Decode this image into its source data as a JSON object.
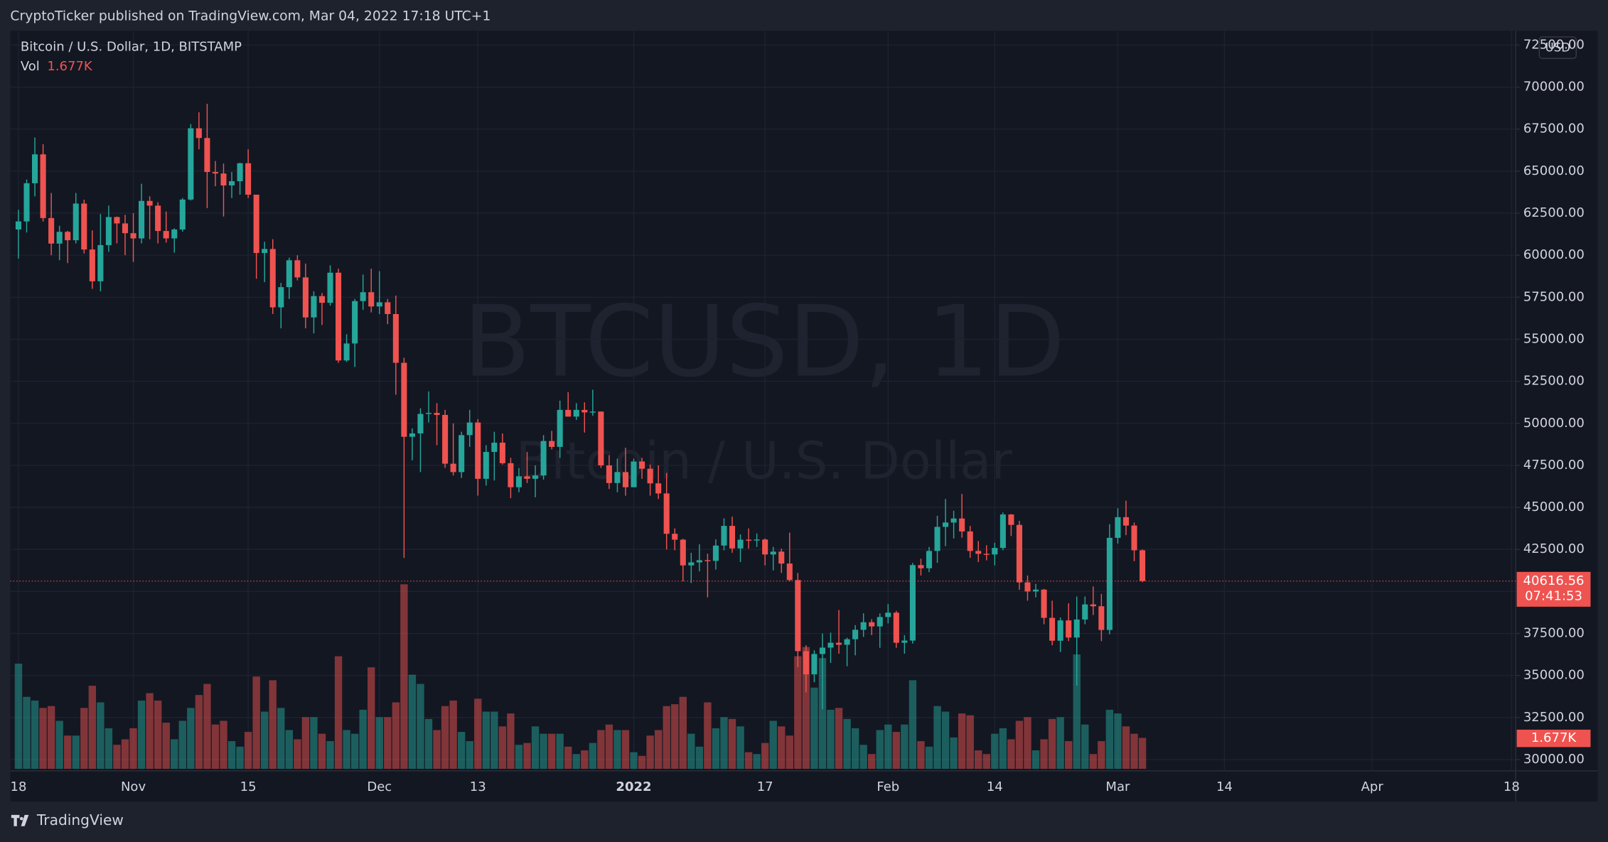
{
  "header": {
    "publisher": "CryptoTicker published on TradingView.com, Mar 04, 2022 17:18 UTC+1"
  },
  "footer": {
    "brand": "TradingView"
  },
  "chart_data": {
    "type": "candlestick",
    "title": "Bitcoin / U.S. Dollar, 1D, BITSTAMP",
    "watermark": "BTCUSD, 1D",
    "watermark_subtitle": "Bitcoin / U.S. Dollar",
    "currency": "USD",
    "countdown": "07:41:53",
    "up_color": "#26a69a",
    "down_color": "#ef5350",
    "grid": true,
    "ylim": [
      29330,
      73350
    ],
    "yticks": [
      {
        "value": 30000,
        "label": "30000.00"
      },
      {
        "value": 32500,
        "label": "32500.00"
      },
      {
        "value": 35000,
        "label": "35000.00"
      },
      {
        "value": 37500,
        "label": "37500.00"
      },
      {
        "value": 40000,
        "label": "40000.00"
      },
      {
        "value": 42500,
        "label": "42500.00"
      },
      {
        "value": 45000,
        "label": "45000.00"
      },
      {
        "value": 47500,
        "label": "47500.00"
      },
      {
        "value": 50000,
        "label": "50000.00"
      },
      {
        "value": 52500,
        "label": "52500.00"
      },
      {
        "value": 55000,
        "label": "55000.00"
      },
      {
        "value": 57500,
        "label": "57500.00"
      },
      {
        "value": 60000,
        "label": "60000.00"
      },
      {
        "value": 62500,
        "label": "62500.00"
      },
      {
        "value": 65000,
        "label": "65000.00"
      },
      {
        "value": 67500,
        "label": "67500.00"
      },
      {
        "value": 70000,
        "label": "70000.00"
      },
      {
        "value": 72500,
        "label": "72500.00"
      }
    ],
    "categories": [
      "18",
      null,
      null,
      null,
      null,
      null,
      null,
      null,
      null,
      null,
      null,
      null,
      null,
      null,
      "Nov",
      null,
      null,
      null,
      null,
      null,
      null,
      null,
      null,
      null,
      null,
      null,
      null,
      null,
      "15",
      null,
      null,
      null,
      null,
      null,
      null,
      null,
      null,
      null,
      null,
      null,
      null,
      null,
      null,
      null,
      "Dec",
      null,
      null,
      null,
      null,
      null,
      null,
      null,
      null,
      null,
      null,
      null,
      "13",
      null,
      null,
      null,
      null,
      null,
      null,
      null,
      null,
      null,
      null,
      null,
      null,
      null,
      null,
      null,
      null,
      null,
      null,
      "2022",
      null,
      null,
      null,
      null,
      null,
      null,
      null,
      null,
      null,
      null,
      null,
      null,
      null,
      null,
      null,
      "17",
      null,
      null,
      null,
      null,
      null,
      null,
      null,
      null,
      null,
      null,
      null,
      null,
      null,
      null,
      "Feb",
      null,
      null,
      null,
      null,
      null,
      null,
      null,
      null,
      null,
      null,
      null,
      null,
      "14",
      null,
      null,
      null,
      null,
      null,
      null,
      null,
      null,
      null,
      null,
      null,
      null,
      null,
      null,
      "Mar",
      null,
      null,
      null,
      null,
      null,
      null,
      null,
      null,
      null,
      null,
      null,
      null,
      "14",
      null,
      null,
      null,
      null,
      null,
      null,
      null,
      null,
      null,
      null,
      null,
      null,
      null,
      null,
      null,
      null,
      null,
      "Apr",
      null,
      null,
      null,
      null,
      null,
      null,
      null,
      null,
      null,
      null,
      null,
      null,
      null,
      null,
      null,
      null,
      "18"
    ],
    "open": [
      61530,
      62010,
      64280,
      66000,
      62210,
      60690,
      61390,
      60890,
      63070,
      60340,
      58450,
      60600,
      62270,
      61890,
      61310,
      61000,
      63230,
      62950,
      61440,
      61000,
      61530,
      63310,
      67550,
      66970,
      64950,
      64860,
      64150,
      64400,
      65470,
      63600,
      60130,
      60370,
      56900,
      58100,
      59700,
      58680,
      56300,
      57570,
      57170,
      58960,
      53740,
      54750,
      57270,
      57800,
      56950,
      57200,
      56500,
      53600,
      49200,
      49400,
      50560,
      50620,
      50500,
      47600,
      47100,
      49300,
      50050,
      46700,
      48300,
      48850,
      47630,
      46200,
      46850,
      46700,
      46900,
      48950,
      48600,
      50800,
      50400,
      50800,
      50650,
      50700,
      47500,
      46450,
      47100,
      46200,
      47730,
      47300,
      46430,
      45830,
      43430,
      43080,
      41550,
      41730,
      41860,
      41820,
      42730,
      43900,
      42560,
      43080,
      43070,
      43090,
      42200,
      42370,
      41660,
      40680,
      36450,
      35070,
      36280,
      36660,
      36950,
      36830,
      37160,
      37720,
      38170,
      37920,
      38480,
      38740,
      36950,
      37080,
      41570,
      41380,
      42410,
      43840,
      44100,
      44340,
      43570,
      42410,
      42240,
      42200,
      42590,
      44580,
      43960,
      40540,
      40000,
      40110,
      38430,
      37070,
      38280,
      37260,
      38330,
      39230,
      39120,
      37710,
      43190,
      44420,
      43920,
      42450,
      null,
      null,
      null,
      null,
      null,
      null,
      null,
      null,
      null,
      null,
      null,
      null,
      null,
      null,
      null,
      null,
      null,
      null,
      null,
      null,
      null,
      null,
      null,
      null,
      null,
      null,
      null,
      null,
      null,
      null,
      null,
      null,
      null,
      null,
      null,
      null,
      null,
      null,
      null,
      null,
      null,
      null,
      null,
      null,
      null
    ],
    "high": [
      62700,
      64500,
      67000,
      66600,
      63700,
      61750,
      61450,
      63700,
      63300,
      61470,
      62450,
      62950,
      62300,
      62400,
      62500,
      64250,
      63500,
      63150,
      62600,
      61600,
      63400,
      67800,
      68500,
      69000,
      65600,
      65450,
      64950,
      65500,
      66300,
      63600,
      60800,
      60950,
      58350,
      59850,
      60000,
      59500,
      57850,
      57750,
      59400,
      59200,
      55300,
      57400,
      58850,
      59200,
      59050,
      57400,
      57600,
      53900,
      49700,
      50900,
      51900,
      51200,
      50800,
      50000,
      49500,
      50800,
      50250,
      48700,
      49500,
      49400,
      47950,
      47350,
      48300,
      47500,
      49300,
      49550,
      51350,
      51850,
      51200,
      51250,
      52000,
      50700,
      48100,
      47900,
      48550,
      47900,
      47950,
      47550,
      47500,
      47050,
      43750,
      43130,
      42300,
      42800,
      42250,
      43100,
      44350,
      44450,
      43400,
      43750,
      43450,
      43150,
      42650,
      42550,
      43500,
      41100,
      36800,
      36500,
      37500,
      37550,
      38900,
      37250,
      38000,
      38700,
      38350,
      38700,
      39250,
      38850,
      37400,
      41700,
      41950,
      42650,
      44500,
      45500,
      44800,
      45800,
      43900,
      43000,
      42750,
      42900,
      44700,
      44600,
      44200,
      40950,
      40450,
      40150,
      39450,
      38450,
      39300,
      39700,
      39700,
      40300,
      39850,
      44000,
      44950,
      45400,
      44100,
      42500,
      null,
      null,
      null,
      null,
      null,
      null,
      null,
      null,
      null,
      null,
      null,
      null,
      null,
      null,
      null,
      null,
      null,
      null,
      null,
      null,
      null,
      null,
      null,
      null,
      null,
      null,
      null,
      null,
      null,
      null,
      null,
      null,
      null,
      null,
      null,
      null,
      null,
      null,
      null,
      null,
      null,
      null,
      null,
      null,
      null
    ],
    "low": [
      59800,
      61350,
      63500,
      62000,
      60000,
      59700,
      59530,
      60700,
      60100,
      58000,
      57850,
      60200,
      60700,
      60000,
      59600,
      60700,
      60950,
      60700,
      60750,
      60150,
      61400,
      63250,
      66300,
      62800,
      64100,
      62300,
      63400,
      63600,
      63400,
      58600,
      58400,
      56500,
      55650,
      57400,
      58500,
      55650,
      55350,
      55850,
      57000,
      53600,
      53650,
      53350,
      56750,
      56600,
      56500,
      55900,
      51700,
      42000,
      47800,
      47100,
      50050,
      48700,
      47350,
      46900,
      46750,
      48600,
      45700,
      46300,
      46600,
      47550,
      45550,
      45900,
      46450,
      45600,
      46650,
      48450,
      47950,
      50400,
      50200,
      49450,
      50450,
      47350,
      46100,
      45900,
      45700,
      46200,
      46700,
      45700,
      45500,
      42500,
      42450,
      40600,
      40500,
      41200,
      39650,
      41300,
      42450,
      42300,
      41750,
      42550,
      42650,
      41550,
      41250,
      41100,
      40600,
      35500,
      34000,
      34600,
      33000,
      35750,
      36300,
      35550,
      36200,
      37300,
      37400,
      36650,
      38100,
      36650,
      36300,
      36900,
      40950,
      41150,
      41700,
      42700,
      43150,
      43200,
      42000,
      41750,
      41850,
      41550,
      42450,
      43300,
      40100,
      39450,
      39650,
      38050,
      36800,
      36400,
      37050,
      34400,
      38050,
      38600,
      37050,
      37450,
      42850,
      43350,
      41800,
      40550,
      null,
      null,
      null,
      null,
      null,
      null,
      null,
      null,
      null,
      null,
      null,
      null,
      null,
      null,
      null,
      null,
      null,
      null,
      null,
      null,
      null,
      null,
      null,
      null,
      null,
      null,
      null,
      null,
      null,
      null,
      null,
      null,
      null,
      null,
      null,
      null,
      null,
      null,
      null,
      null,
      null,
      null,
      null,
      null,
      null
    ],
    "close": [
      62010,
      64280,
      66000,
      62210,
      60690,
      61390,
      60890,
      63070,
      60340,
      58450,
      60600,
      62270,
      61890,
      61310,
      61000,
      63230,
      62950,
      61440,
      61000,
      61530,
      63310,
      67550,
      66970,
      64950,
      64860,
      64150,
      64400,
      65470,
      63600,
      60130,
      60370,
      56900,
      58100,
      59700,
      58680,
      56300,
      57570,
      57170,
      58960,
      53740,
      54750,
      57270,
      57800,
      56950,
      57200,
      56500,
      53600,
      49200,
      49400,
      50560,
      50620,
      50500,
      47600,
      47100,
      49300,
      50050,
      46700,
      48300,
      48850,
      47630,
      46200,
      46850,
      46700,
      46900,
      48950,
      48600,
      50800,
      50400,
      50800,
      50650,
      50700,
      47500,
      46450,
      47100,
      46200,
      47730,
      47300,
      46430,
      45830,
      43430,
      43080,
      41550,
      41730,
      41860,
      41820,
      42730,
      43900,
      42560,
      43080,
      43070,
      43090,
      42200,
      42370,
      41660,
      40680,
      36450,
      35070,
      36280,
      36660,
      36950,
      36830,
      37160,
      37720,
      38170,
      37920,
      38480,
      38740,
      36950,
      37080,
      41570,
      41380,
      42410,
      43840,
      44100,
      44340,
      43570,
      42410,
      42240,
      42200,
      42590,
      44580,
      43960,
      40540,
      40000,
      40110,
      38430,
      37070,
      38280,
      37260,
      38330,
      39230,
      39120,
      37710,
      43190,
      44420,
      43920,
      42450,
      40616.56,
      null,
      null,
      null,
      null,
      null,
      null,
      null,
      null,
      null,
      null,
      null,
      null,
      null,
      null,
      null,
      null,
      null,
      null,
      null,
      null,
      null,
      null,
      null,
      null,
      null,
      null,
      null,
      null,
      null,
      null,
      null,
      null,
      null,
      null,
      null,
      null,
      null,
      null,
      null,
      null,
      null,
      null,
      null,
      null,
      null
    ],
    "volume": {
      "name": "Vol",
      "last_label": "1.677K",
      "values": [
        5700,
        3900,
        3700,
        3300,
        3400,
        2600,
        1800,
        1800,
        3300,
        4500,
        3600,
        2200,
        1300,
        1600,
        2200,
        3700,
        4100,
        3700,
        2500,
        1600,
        2600,
        3300,
        4000,
        4600,
        2400,
        2600,
        1500,
        1200,
        2000,
        5000,
        3100,
        4800,
        3300,
        2100,
        1600,
        2800,
        2800,
        1900,
        1500,
        6100,
        2100,
        1900,
        3200,
        5500,
        2800,
        2800,
        3600,
        10000,
        5100,
        4600,
        2700,
        2100,
        3400,
        3700,
        2000,
        1500,
        3800,
        3100,
        3100,
        2300,
        3000,
        1300,
        1400,
        2300,
        1900,
        1900,
        1900,
        1200,
        800,
        1000,
        1400,
        2100,
        2400,
        2100,
        2100,
        900,
        700,
        1800,
        2100,
        3400,
        3500,
        3900,
        1900,
        1200,
        3600,
        2200,
        2800,
        2700,
        2300,
        900,
        800,
        1400,
        2600,
        2300,
        1800,
        6100,
        6600,
        4400,
        6000,
        3200,
        3300,
        2700,
        2200,
        1300,
        800,
        2100,
        2400,
        2000,
        2400,
        4800,
        1500,
        1200,
        3400,
        3100,
        1700,
        3000,
        2900,
        1000,
        800,
        1900,
        2200,
        1600,
        2600,
        2800,
        1000,
        1600,
        2700,
        2800,
        1500,
        6200,
        2400,
        800,
        1500,
        3200,
        3000,
        2300,
        1900,
        1677,
        null,
        null,
        null,
        null,
        null,
        null,
        null,
        null,
        null,
        null,
        null,
        null,
        null,
        null,
        null,
        null,
        null,
        null,
        null,
        null,
        null,
        null,
        null,
        null,
        null,
        null,
        null,
        null,
        null,
        null,
        null,
        null,
        null,
        null,
        null,
        null,
        null,
        null,
        null,
        null,
        null,
        null,
        null,
        null,
        null
      ]
    }
  }
}
